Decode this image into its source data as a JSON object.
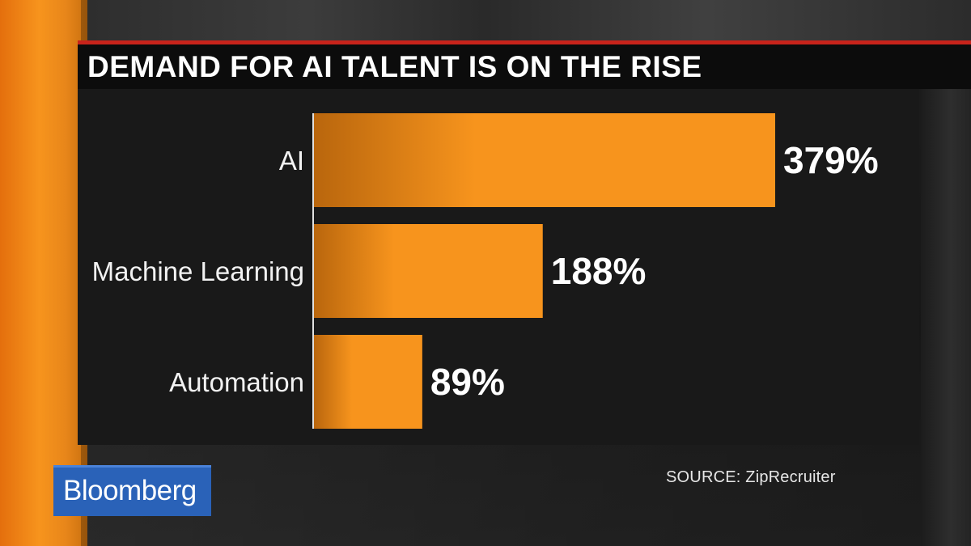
{
  "title": "DEMAND FOR AI TALENT IS ON THE RISE",
  "source": "SOURCE: ZipRecruiter",
  "logo": "Bloomberg",
  "colors": {
    "bar": "#f7941d",
    "title_rule": "#c8231b",
    "logo_bg": "#2a62b8",
    "background_strip": "#f7941d"
  },
  "chart_data": {
    "type": "bar",
    "orientation": "horizontal",
    "categories": [
      "AI",
      "Machine Learning",
      "Automation"
    ],
    "values": [
      379,
      188,
      89
    ],
    "value_labels": [
      "379%",
      "188%",
      "89%"
    ],
    "unit": "%",
    "title": "DEMAND FOR AI TALENT IS ON THE RISE",
    "xlabel": "",
    "ylabel": "",
    "grid": false,
    "legend": "none"
  }
}
